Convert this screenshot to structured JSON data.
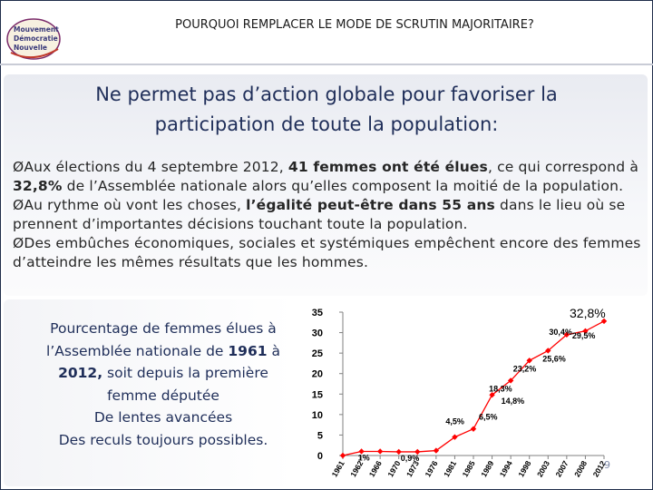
{
  "header": {
    "logo_lines": [
      "Mouvement",
      "Démocratie",
      "Nouvelle"
    ],
    "title": "POURQUOI REMPLACER LE MODE DE SCRUTIN MAJORITAIRE?"
  },
  "headline": {
    "line1": "Ne permet pas d’action globale pour favoriser la",
    "line2": "participation de toute la population:"
  },
  "bullets": [
    {
      "marker": "Ø",
      "parts": [
        "Aux élections du 4 septembre 2012, ",
        "41 femmes ont été élues",
        ", ce qui correspond à ",
        "32,8%",
        " de l’Assemblée nationale alors qu’elles composent la moitié de la population."
      ]
    },
    {
      "marker": "Ø",
      "parts": [
        "Au rythme où vont les choses, ",
        "l’égalité peut-être dans 55 ans",
        " dans le lieu où se prennent d’importantes décisions touchant toute la population."
      ]
    },
    {
      "marker": "Ø",
      "parts": [
        "Des embûches économiques, sociales et systémiques empêchent encore des femmes d’atteindre les mêmes résultats que les hommes."
      ]
    }
  ],
  "caption": {
    "line1": "Pourcentage de femmes élues à",
    "line2_pre": "l’Assemblée nationale de ",
    "line2_bold": "1961",
    "line2_post": " à",
    "line3_bold": "2012,",
    "line3_post": " soit depuis la première",
    "line4": "femme députée",
    "line5": "De lentes avancées",
    "line6": "Des reculs toujours possibles."
  },
  "chart_data": {
    "type": "line",
    "title": "",
    "xlabel": "",
    "ylabel": "",
    "x": [
      "1961",
      "1962",
      "1966",
      "1970",
      "1973",
      "1976",
      "1981",
      "1985",
      "1989",
      "1994",
      "1998",
      "2003",
      "2007",
      "2008",
      "2012"
    ],
    "series": [
      {
        "name": "Pourcentage de femmes élues",
        "values": [
          0,
          1,
          1,
          0.9,
          0.9,
          1.2,
          4.5,
          6.5,
          14.8,
          18.3,
          23.2,
          25.6,
          29.5,
          30.4,
          32.8
        ]
      }
    ],
    "data_labels": [
      {
        "index": 1,
        "text": "1%"
      },
      {
        "index": 3,
        "text": "0,9%"
      },
      {
        "index": 6,
        "text": "4,5%"
      },
      {
        "index": 7,
        "text": "6,5%"
      },
      {
        "index": 8,
        "text": "14,8%"
      },
      {
        "index": 9,
        "text": "18,3%"
      },
      {
        "index": 10,
        "text": "23,2%"
      },
      {
        "index": 11,
        "text": "25,6%"
      },
      {
        "index": 12,
        "text": "29,5%"
      },
      {
        "index": 13,
        "text": "30,4%"
      },
      {
        "index": 14,
        "text": "32,8%"
      }
    ],
    "yticks": [
      0,
      5,
      10,
      15,
      20,
      25,
      30,
      35
    ],
    "ylim": [
      0,
      35
    ],
    "grid": false,
    "color": "#ff0000"
  },
  "page_number": "9",
  "colors": {
    "title_blue": "#1f2e59",
    "body_text": "#262626",
    "series_red": "#ff0000",
    "frame": "#1f2d4a"
  }
}
